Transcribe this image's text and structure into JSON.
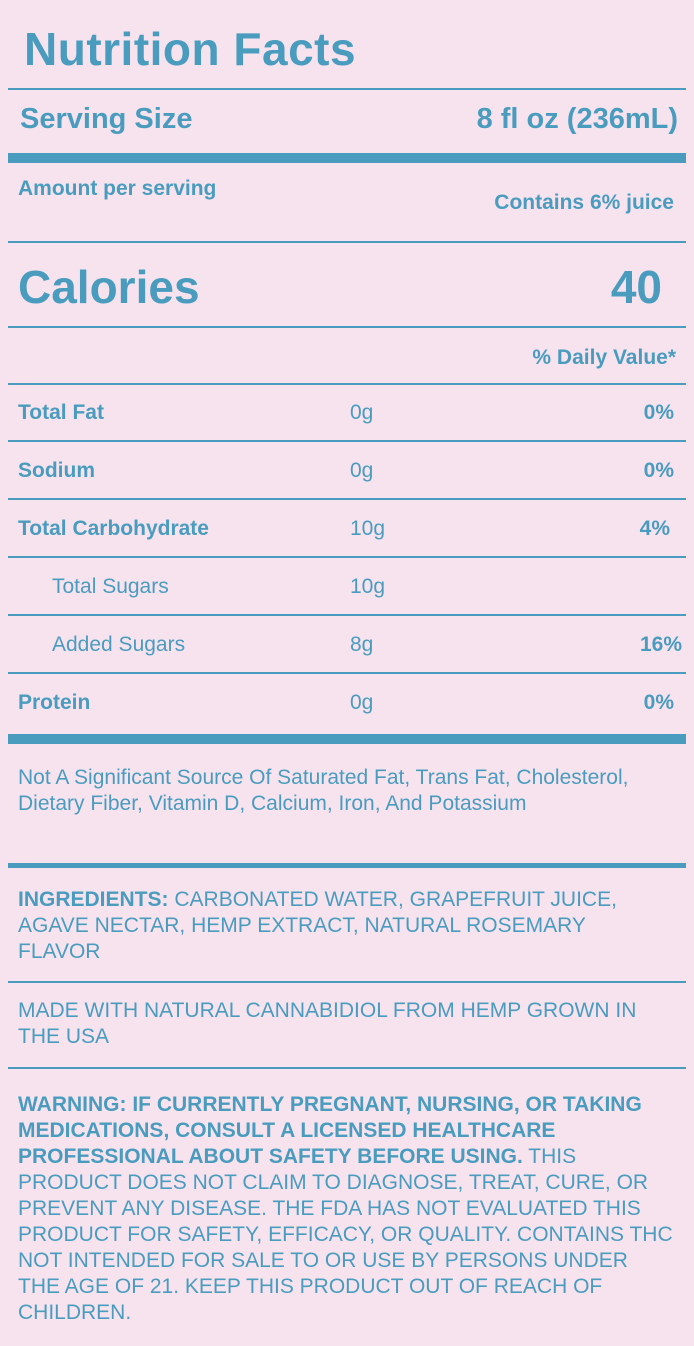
{
  "title": "Nutrition Facts",
  "serving": {
    "label": "Serving Size",
    "value": "8 fl oz (236mL)"
  },
  "amount_per_serving": "Amount per serving",
  "juice_note": "Contains 6% juice",
  "calories": {
    "label": "Calories",
    "value": "40"
  },
  "daily_value_header": "% Daily Value*",
  "nutrients": [
    {
      "name": "Total Fat",
      "amount": "0g",
      "dv": "0%",
      "bold": true
    },
    {
      "name": "Sodium",
      "amount": "0g",
      "dv": "0%",
      "bold": true
    },
    {
      "name": "Total Carbohydrate",
      "amount": "10g",
      "dv": "4%",
      "bold": true
    },
    {
      "name": "Total Sugars",
      "amount": "10g",
      "dv": "",
      "bold": false
    },
    {
      "name": "Added Sugars",
      "amount": "8g",
      "dv": "16%",
      "bold": false
    },
    {
      "name": "Protein",
      "amount": "0g",
      "dv": "0%",
      "bold": true
    }
  ],
  "not_significant": "Not A Significant Source Of Saturated Fat, Trans Fat, Cholesterol, Dietary Fiber, Vitamin D, Calcium, Iron, And Potassium",
  "ingredients": {
    "label": "INGREDIENTS:",
    "text": " CARBONATED WATER, GRAPEFRUIT JUICE, AGAVE NECTAR, HEMP EXTRACT, NATURAL ROSEMARY FLAVOR"
  },
  "made_with": "MADE WITH NATURAL CANNABIDIOL FROM HEMP GROWN IN THE USA",
  "warning": {
    "bold": "WARNING: IF CURRENTLY PREGNANT, NURSING, OR TAKING MEDICATIONS, CONSULT A LICENSED HEALTHCARE PROFESSIONAL ABOUT SAFETY BEFORE USING.",
    "text": " THIS PRODUCT DOES NOT CLAIM TO DIAGNOSE, TREAT, CURE, OR PREVENT ANY DISEASE. THE FDA HAS NOT EVALUATED THIS PRODUCT FOR SAFETY, EFFICACY, OR QUALITY. CONTAINS THC NOT INTENDED FOR SALE TO OR USE BY PERSONS UNDER THE AGE OF 21. KEEP THIS PRODUCT OUT OF REACH OF CHILDREN."
  },
  "colors": {
    "background": "#f6e3ee",
    "accent": "#4a9cbf"
  }
}
